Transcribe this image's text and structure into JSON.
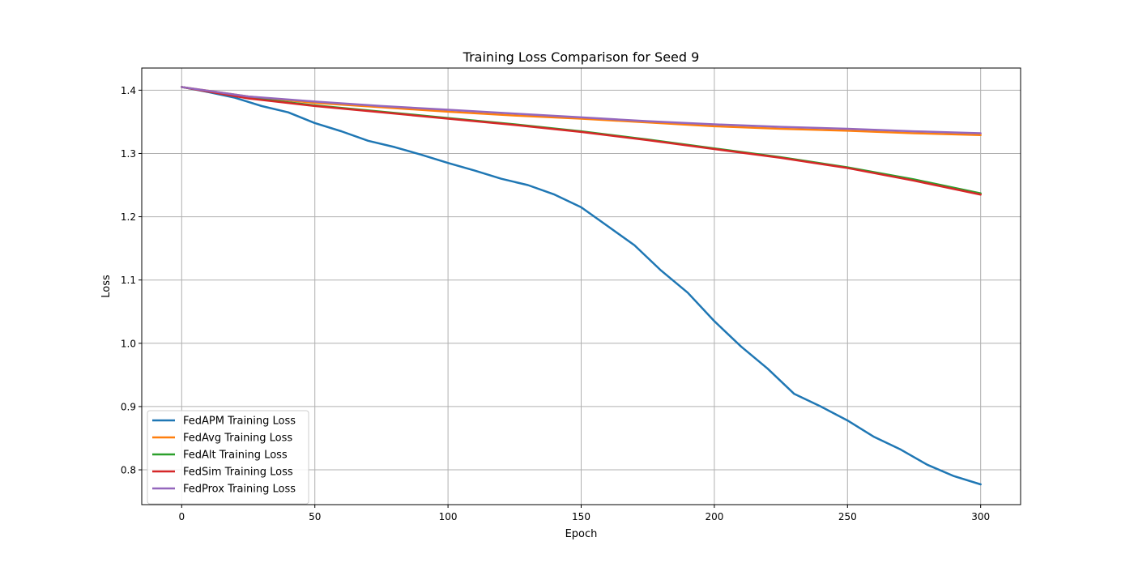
{
  "chart_data": {
    "type": "line",
    "title": "Training Loss Comparison for Seed 9",
    "xlabel": "Epoch",
    "ylabel": "Loss",
    "xlim": [
      -15,
      315
    ],
    "ylim": [
      0.745,
      1.435
    ],
    "xticks": [
      0,
      50,
      100,
      150,
      200,
      250,
      300
    ],
    "yticks": [
      0.8,
      0.9,
      1.0,
      1.1,
      1.2,
      1.3,
      1.4
    ],
    "grid": true,
    "legend_position": "lower-left",
    "series": [
      {
        "name": "FedAPM Training Loss",
        "color": "#1f77b4",
        "x": [
          0,
          10,
          20,
          30,
          40,
          50,
          60,
          70,
          80,
          90,
          100,
          110,
          120,
          130,
          140,
          150,
          160,
          170,
          180,
          190,
          200,
          210,
          220,
          230,
          240,
          250,
          260,
          270,
          280,
          290,
          300
        ],
        "y": [
          1.405,
          1.397,
          1.388,
          1.375,
          1.365,
          1.348,
          1.335,
          1.32,
          1.31,
          1.298,
          1.285,
          1.273,
          1.26,
          1.25,
          1.235,
          1.215,
          1.185,
          1.155,
          1.115,
          1.08,
          1.035,
          0.995,
          0.96,
          0.92,
          0.9,
          0.878,
          0.852,
          0.832,
          0.808,
          0.79,
          0.777
        ]
      },
      {
        "name": "FedAvg Training Loss",
        "color": "#ff7f0e",
        "x": [
          0,
          25,
          50,
          75,
          100,
          125,
          150,
          175,
          200,
          225,
          250,
          275,
          300
        ],
        "y": [
          1.405,
          1.39,
          1.38,
          1.373,
          1.366,
          1.36,
          1.355,
          1.349,
          1.343,
          1.339,
          1.336,
          1.332,
          1.329
        ]
      },
      {
        "name": "FedAlt Training Loss",
        "color": "#2ca02c",
        "x": [
          0,
          25,
          50,
          75,
          100,
          125,
          150,
          175,
          200,
          225,
          250,
          275,
          300
        ],
        "y": [
          1.405,
          1.388,
          1.376,
          1.366,
          1.356,
          1.346,
          1.335,
          1.322,
          1.308,
          1.294,
          1.278,
          1.259,
          1.237
        ]
      },
      {
        "name": "FedSim Training Loss",
        "color": "#d62728",
        "x": [
          0,
          25,
          50,
          75,
          100,
          125,
          150,
          175,
          200,
          225,
          250,
          275,
          300
        ],
        "y": [
          1.405,
          1.387,
          1.375,
          1.365,
          1.355,
          1.345,
          1.334,
          1.321,
          1.307,
          1.293,
          1.277,
          1.257,
          1.235
        ]
      },
      {
        "name": "FedProx Training Loss",
        "color": "#9467bd",
        "x": [
          0,
          25,
          50,
          75,
          100,
          125,
          150,
          175,
          200,
          225,
          250,
          275,
          300
        ],
        "y": [
          1.405,
          1.39,
          1.382,
          1.375,
          1.369,
          1.363,
          1.357,
          1.351,
          1.346,
          1.342,
          1.339,
          1.335,
          1.332
        ]
      }
    ]
  }
}
